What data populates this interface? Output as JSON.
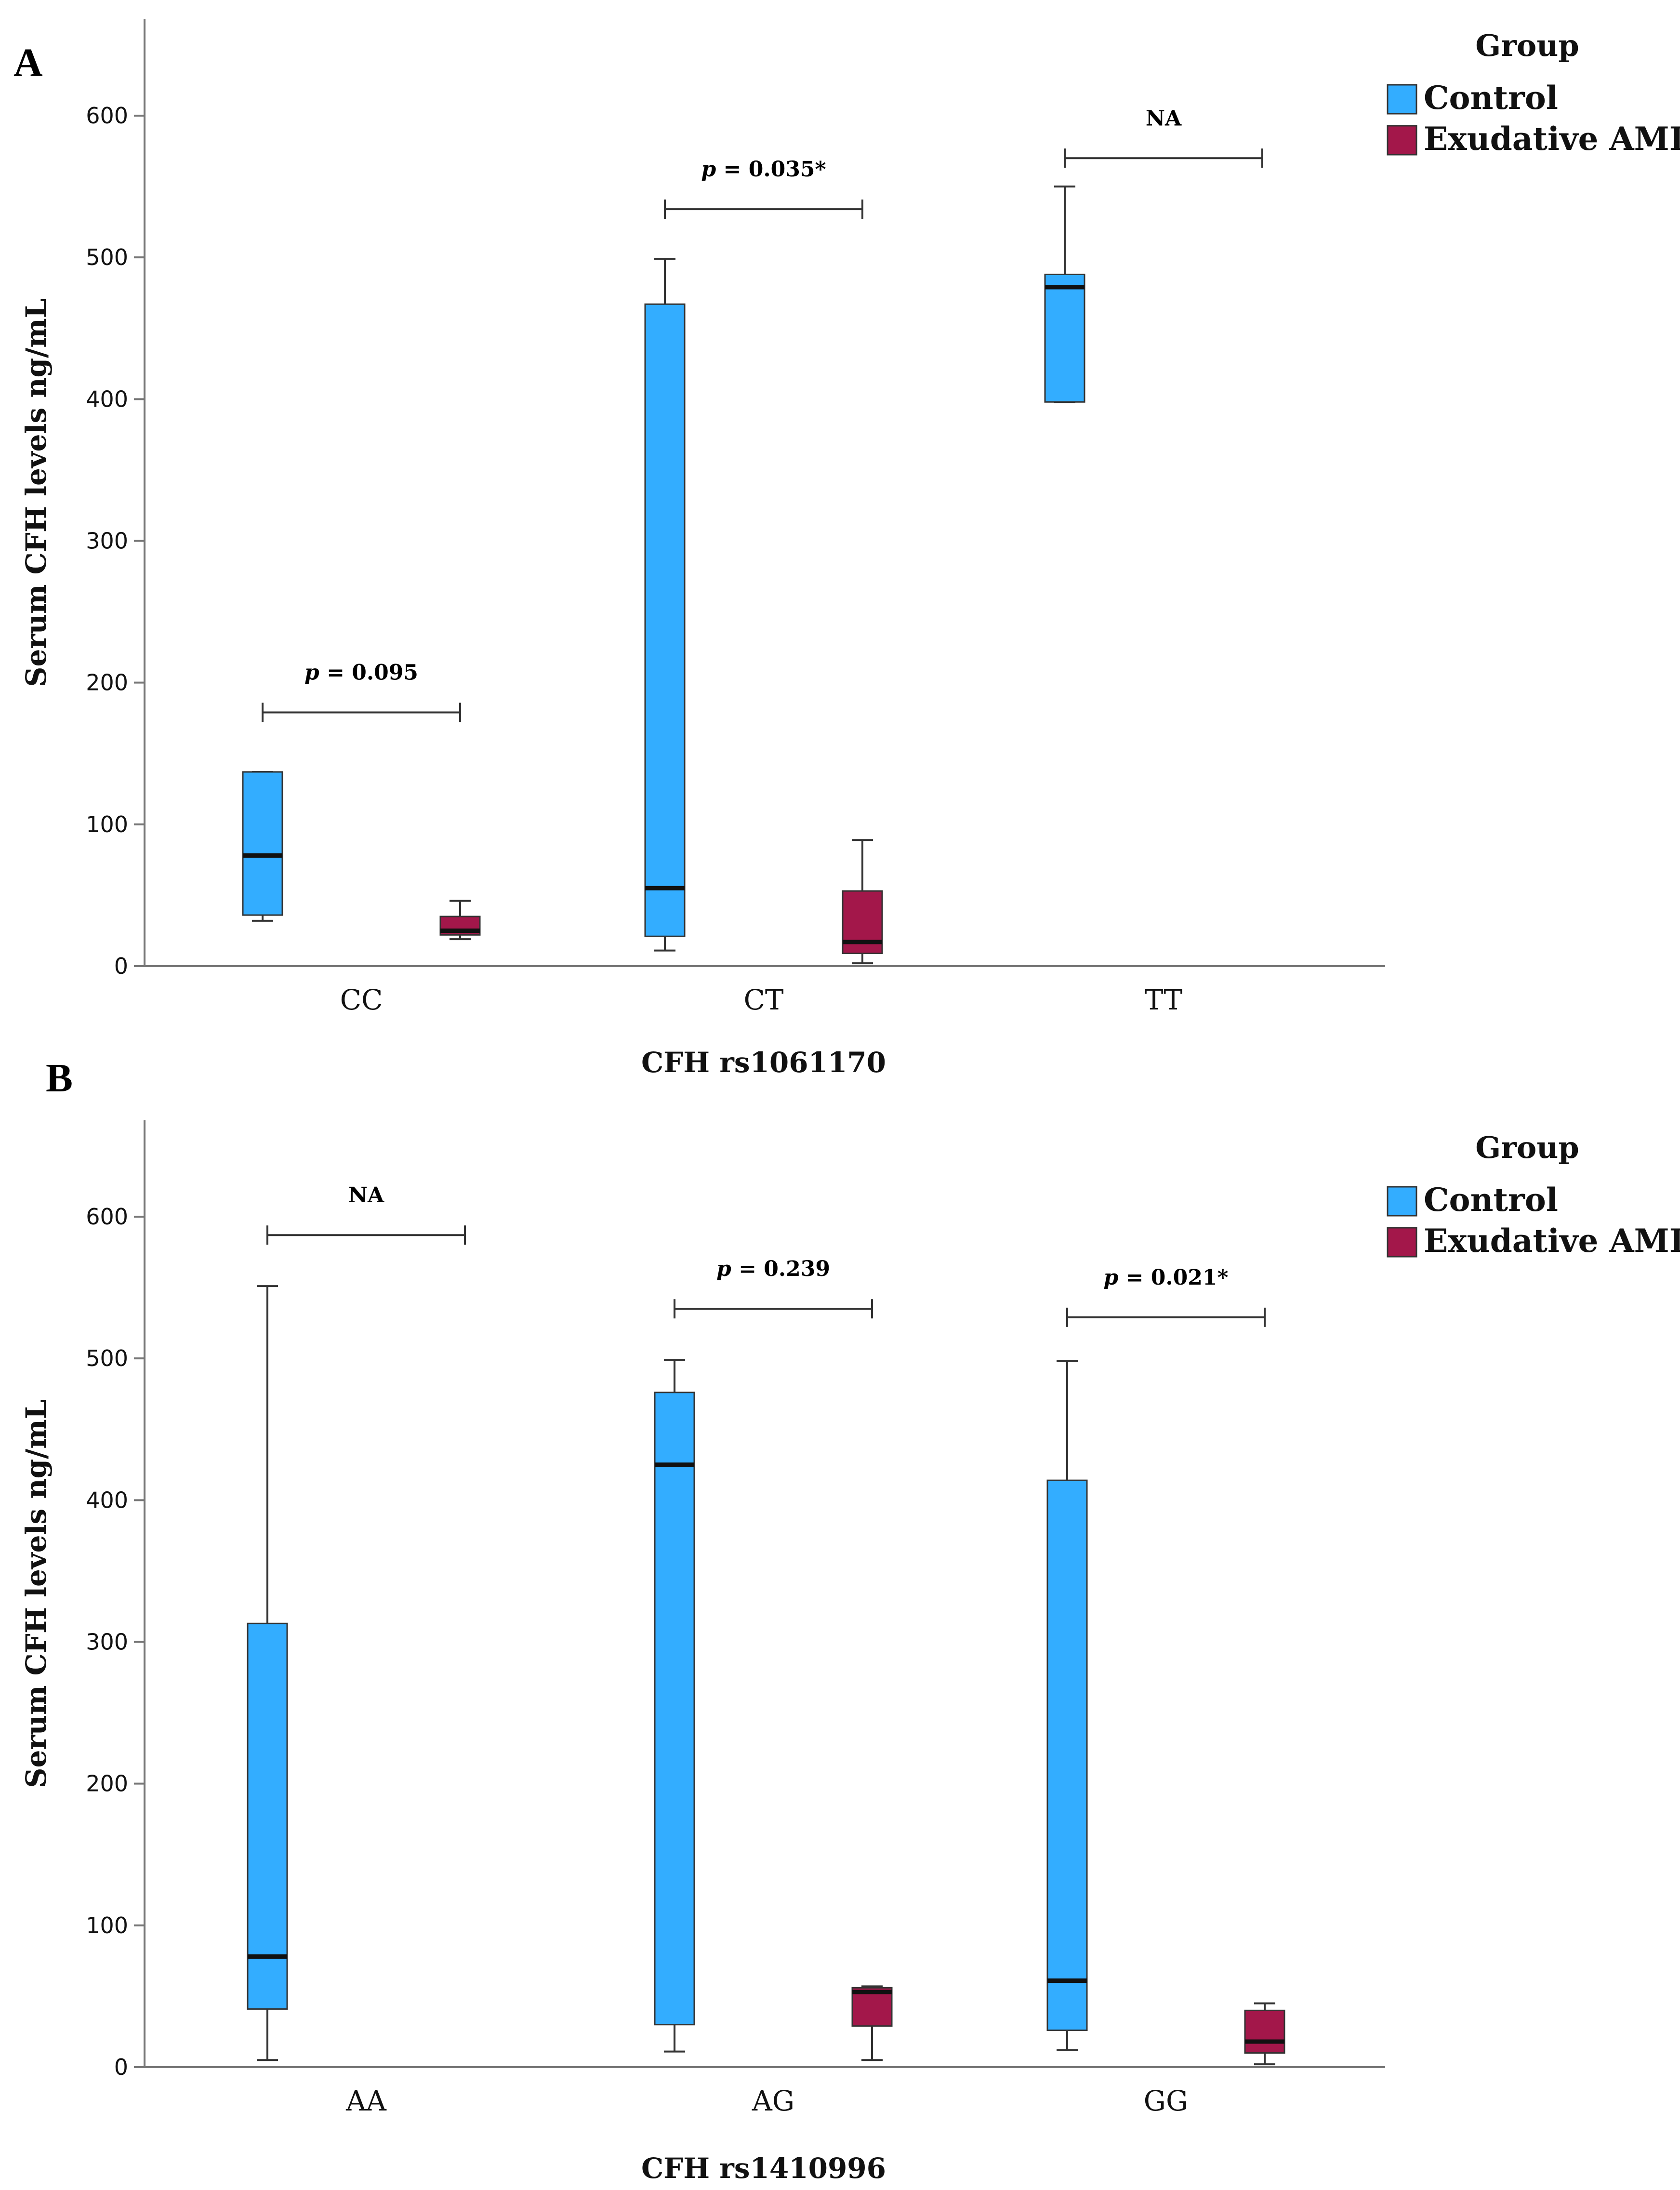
{
  "colors": {
    "control": "#33adff",
    "amd": "#a3174a",
    "axis": "#777777",
    "line": "#333333",
    "median": "#111111"
  },
  "chart_data": [
    {
      "type": "box",
      "panel_label": "A",
      "xlabel": "CFH rs1061170",
      "ylabel": "Serum CFH levels ng/mL",
      "ylim": [
        0,
        660
      ],
      "yticks": [
        0,
        100,
        200,
        300,
        400,
        500,
        600
      ],
      "categories": [
        "CC",
        "CT",
        "TT"
      ],
      "legend": {
        "title": "Group",
        "entries": [
          "Control",
          "Exudative AMD"
        ]
      },
      "series": [
        {
          "name": "Control",
          "color_key": "control",
          "boxes": [
            {
              "category": "CC",
              "min": 32,
              "q1": 36,
              "median": 78,
              "q3": 137,
              "max": 137
            },
            {
              "category": "CT",
              "min": 11,
              "q1": 21,
              "median": 55,
              "q3": 467,
              "max": 499
            },
            {
              "category": "TT",
              "min": 398,
              "q1": 398,
              "median": 479,
              "q3": 488,
              "max": 550
            }
          ]
        },
        {
          "name": "Exudative AMD",
          "color_key": "amd",
          "boxes": [
            {
              "category": "CC",
              "min": 19,
              "q1": 22,
              "median": 25,
              "q3": 35,
              "max": 46
            },
            {
              "category": "CT",
              "min": 2,
              "q1": 9,
              "median": 17,
              "q3": 53,
              "max": 89
            }
          ]
        }
      ],
      "annotations": [
        {
          "category": "CC",
          "p_label": "p",
          "text": "= 0.095",
          "y": 179
        },
        {
          "category": "CT",
          "p_label": "p",
          "text": "= 0.035*",
          "y": 534
        },
        {
          "category": "TT",
          "p_label": "",
          "text": "NA",
          "y": 570
        }
      ]
    },
    {
      "type": "box",
      "panel_label": "B",
      "xlabel": "CFH rs1410996",
      "ylabel": "Serum CFH levels ng/mL",
      "ylim": [
        0,
        670
      ],
      "yticks": [
        0,
        100,
        200,
        300,
        400,
        500,
        600
      ],
      "categories": [
        "AA",
        "AG",
        "GG"
      ],
      "legend": {
        "title": "Group",
        "entries": [
          "Control",
          "Exudative AMD"
        ]
      },
      "series": [
        {
          "name": "Control",
          "color_key": "control",
          "boxes": [
            {
              "category": "AA",
              "min": 5,
              "q1": 41,
              "median": 78,
              "q3": 313,
              "max": 551
            },
            {
              "category": "AG",
              "min": 11,
              "q1": 30,
              "median": 425,
              "q3": 476,
              "max": 499
            },
            {
              "category": "GG",
              "min": 12,
              "q1": 26,
              "median": 61,
              "q3": 414,
              "max": 498
            }
          ]
        },
        {
          "name": "Exudative AMD",
          "color_key": "amd",
          "boxes": [
            {
              "category": "AG",
              "min": 5,
              "q1": 29,
              "median": 53,
              "q3": 56,
              "max": 57
            },
            {
              "category": "GG",
              "min": 2,
              "q1": 10,
              "median": 18,
              "q3": 40,
              "max": 45
            }
          ]
        }
      ],
      "annotations": [
        {
          "category": "AA",
          "p_label": "",
          "text": "NA",
          "y": 587
        },
        {
          "category": "AG",
          "p_label": "p",
          "text": "= 0.239",
          "y": 535
        },
        {
          "category": "GG",
          "p_label": "p",
          "text": "= 0.021*",
          "y": 529
        }
      ]
    }
  ]
}
